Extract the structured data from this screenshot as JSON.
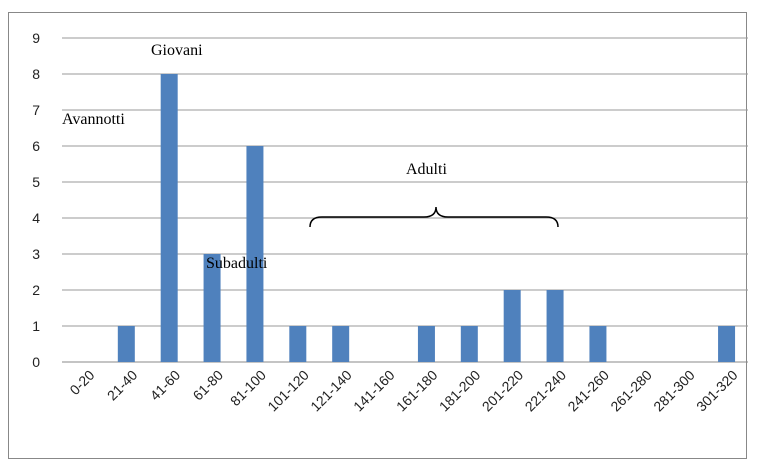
{
  "chart_data": {
    "type": "bar",
    "categories": [
      "0-20",
      "21-40",
      "41-60",
      "61-80",
      "81-100",
      "101-120",
      "121-140",
      "141-160",
      "161-180",
      "181-200",
      "201-220",
      "221-240",
      "241-260",
      "261-280",
      "281-300",
      "301-320"
    ],
    "values": [
      0,
      1,
      8,
      3,
      6,
      1,
      1,
      0,
      1,
      1,
      2,
      2,
      1,
      0,
      0,
      1
    ],
    "ylim": [
      0,
      9
    ],
    "yticks": [
      "0",
      "1",
      "2",
      "3",
      "4",
      "5",
      "6",
      "7",
      "8",
      "9"
    ],
    "grid": true,
    "bar_color": "#4f81bd",
    "annotations": {
      "avannotti": "Avannotti",
      "giovani": "Giovani",
      "subadulti": "Subadulti",
      "adulti": "Adulti"
    }
  }
}
